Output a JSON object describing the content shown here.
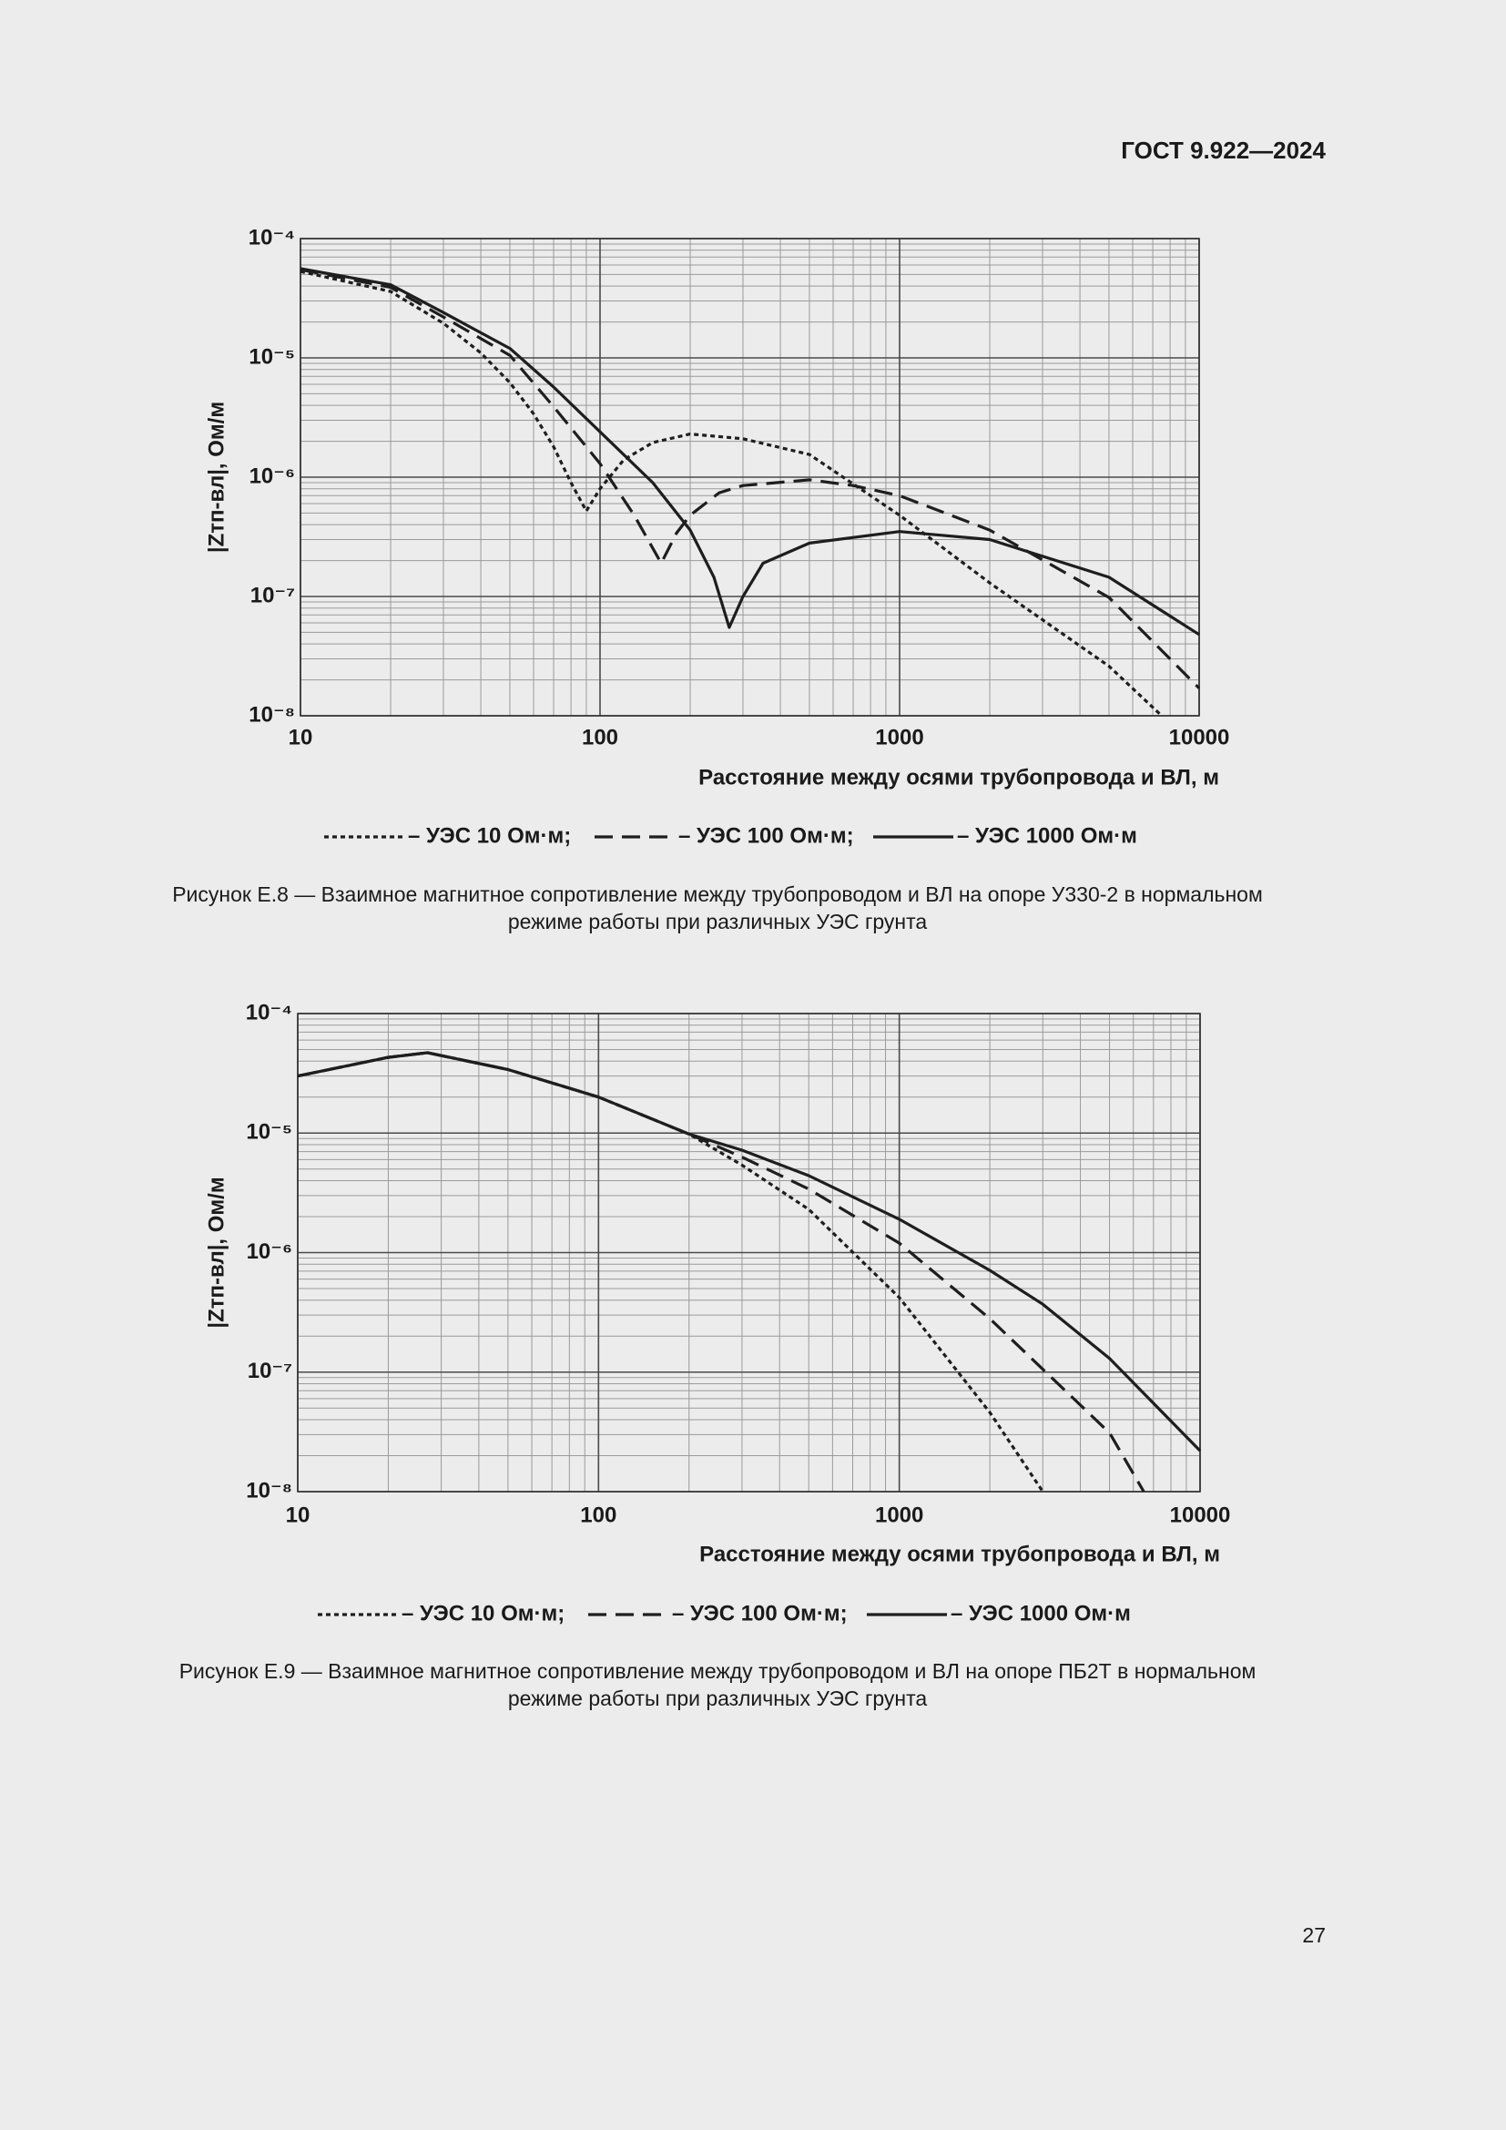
{
  "header": {
    "title": "ГОСТ 9.922—2024"
  },
  "page_number": "27",
  "chart_data": [
    {
      "type": "line",
      "xlabel": "Расстояние между осями трубопровода и ВЛ, м",
      "ylabel": "|Zтп-вл|, Ом/м",
      "xscale": "log",
      "yscale": "log",
      "grid": true,
      "xlim": [
        10,
        10000
      ],
      "xticks": [
        10,
        100,
        1000,
        10000
      ],
      "ylim": [
        1e-08,
        0.0001
      ],
      "yticks": [
        {
          "value": 1e-08,
          "label": "10⁻⁸"
        },
        {
          "value": 1e-07,
          "label": "10⁻⁷"
        },
        {
          "value": 1e-06,
          "label": "10⁻⁶"
        },
        {
          "value": 1e-05,
          "label": "10⁻⁵"
        },
        {
          "value": 0.0001,
          "label": "10⁻⁴"
        }
      ],
      "series": [
        {
          "name": "– УЭС 10 Ом·м;",
          "color": "#1e1e1e",
          "style": "dotted",
          "x": [
            10,
            20,
            30,
            40,
            50,
            60,
            70,
            80,
            90,
            100,
            120,
            150,
            200,
            300,
            500,
            1000,
            2000,
            5000,
            7500
          ],
          "values": [
            5.3e-05,
            3.6e-05,
            1.95e-05,
            1.1e-05,
            6.2e-06,
            3.4e-06,
            1.8e-06,
            9e-07,
            5.2e-07,
            8e-07,
            1.4e-06,
            1.95e-06,
            2.3e-06,
            2.1e-06,
            1.55e-06,
            4.8e-07,
            1.3e-07,
            2.6e-08,
            1e-08
          ]
        },
        {
          "name": "– УЭС 100 Ом·м;",
          "color": "#1e1e1e",
          "style": "dashed",
          "x": [
            10,
            20,
            30,
            50,
            70,
            100,
            130,
            160,
            180,
            200,
            250,
            300,
            500,
            700,
            1000,
            2000,
            5000,
            10000
          ],
          "values": [
            5.5e-05,
            3.9e-05,
            2.2e-05,
            1.05e-05,
            3.9e-06,
            1.3e-06,
            4.8e-07,
            1.9e-07,
            3.4e-07,
            4.8e-07,
            7.4e-07,
            8.5e-07,
            9.5e-07,
            8.5e-07,
            7e-07,
            3.6e-07,
            9.8e-08,
            1.7e-08
          ]
        },
        {
          "name": "– УЭС 1000 Ом·м",
          "color": "#1e1e1e",
          "style": "solid",
          "x": [
            10,
            20,
            30,
            50,
            70,
            100,
            150,
            200,
            240,
            270,
            300,
            350,
            500,
            1000,
            2000,
            5000,
            10000
          ],
          "values": [
            5.6e-05,
            4.1e-05,
            2.4e-05,
            1.2e-05,
            5.7e-06,
            2.4e-06,
            9e-07,
            3.6e-07,
            1.45e-07,
            5.5e-08,
            1e-07,
            1.9e-07,
            2.8e-07,
            3.5e-07,
            3e-07,
            1.45e-07,
            4.8e-08
          ]
        }
      ],
      "caption": [
        "Рисунок Е.8 — Взаимное магнитное сопротивление между трубопроводом и ВЛ на опоре У330-2 в нормальном",
        "режиме работы при различных УЭС грунта"
      ]
    },
    {
      "type": "line",
      "xlabel": "Расстояние между осями трубопровода и ВЛ, м",
      "ylabel": "|Zтп-вл|, Ом/м",
      "xscale": "log",
      "yscale": "log",
      "grid": true,
      "xlim": [
        10,
        10000
      ],
      "xticks": [
        10,
        100,
        1000,
        10000
      ],
      "ylim": [
        1e-08,
        0.0001
      ],
      "yticks": [
        {
          "value": 1e-08,
          "label": "10⁻⁸"
        },
        {
          "value": 1e-07,
          "label": "10⁻⁷"
        },
        {
          "value": 1e-06,
          "label": "10⁻⁶"
        },
        {
          "value": 1e-05,
          "label": "10⁻⁵"
        },
        {
          "value": 0.0001,
          "label": "10⁻⁴"
        }
      ],
      "series": [
        {
          "name": "– УЭС 10 Ом·м;",
          "color": "#1e1e1e",
          "style": "dotted",
          "x": [
            10,
            20,
            27,
            50,
            100,
            200,
            300,
            500,
            1000,
            2000,
            3000
          ],
          "values": [
            3e-05,
            4.3e-05,
            4.7e-05,
            3.4e-05,
            2e-05,
            9.8e-06,
            5.4e-06,
            2.3e-06,
            4.2e-07,
            4.6e-08,
            1e-08
          ]
        },
        {
          "name": "– УЭС 100 Ом·м;",
          "color": "#1e1e1e",
          "style": "dashed",
          "x": [
            10,
            20,
            27,
            50,
            100,
            200,
            300,
            500,
            1000,
            2000,
            5000,
            6500
          ],
          "values": [
            3e-05,
            4.3e-05,
            4.7e-05,
            3.4e-05,
            2e-05,
            9.8e-06,
            6.3e-06,
            3.4e-06,
            1.2e-06,
            2.8e-07,
            3.1e-08,
            1e-08
          ]
        },
        {
          "name": "– УЭС 1000 Ом·м",
          "color": "#1e1e1e",
          "style": "solid",
          "x": [
            10,
            20,
            27,
            50,
            100,
            200,
            300,
            500,
            1000,
            2000,
            3000,
            5000,
            10000
          ],
          "values": [
            3e-05,
            4.3e-05,
            4.7e-05,
            3.4e-05,
            2e-05,
            9.8e-06,
            7.2e-06,
            4.4e-06,
            1.9e-06,
            7.1e-07,
            3.7e-07,
            1.3e-07,
            2.2e-08
          ]
        }
      ],
      "caption": [
        "Рисунок Е.9 — Взаимное магнитное сопротивление между трубопроводом и ВЛ на опоре ПБ2Т в нормальном",
        "режиме работы при различных УЭС грунта"
      ]
    }
  ]
}
